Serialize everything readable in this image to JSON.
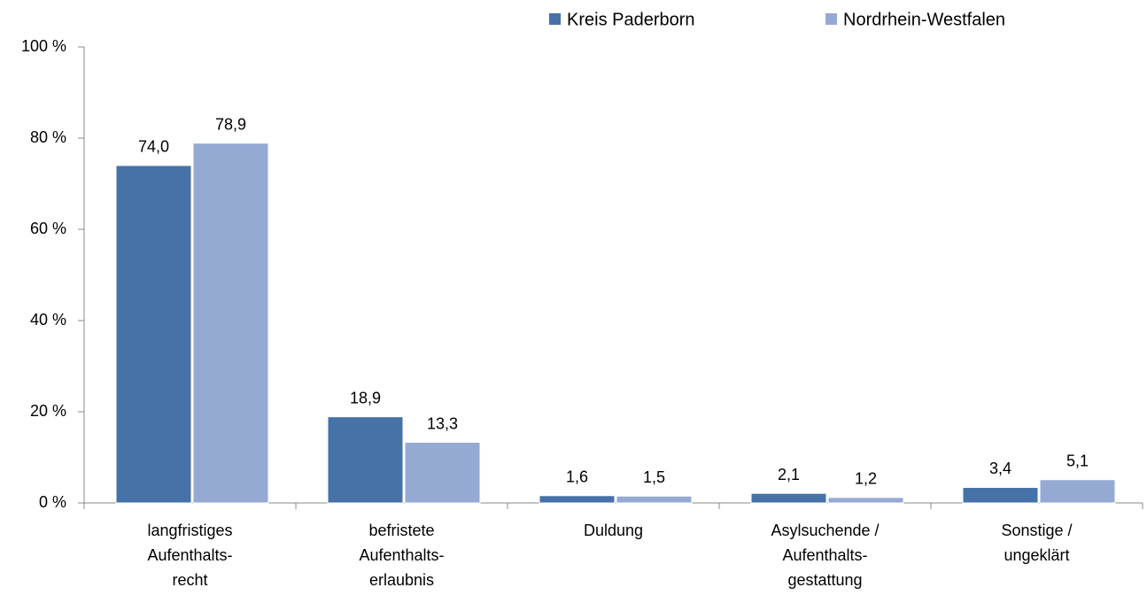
{
  "chart_data": {
    "type": "bar",
    "categories": [
      "langfristiges\nAufenthalts-\nrecht",
      "befristete\nAufenthalts-\nerlaubnis",
      "Duldung",
      "Asylsuchende /\nAufenthalts-\ngestattung",
      "Sonstige /\nungeklärt"
    ],
    "series": [
      {
        "name": "Kreis Paderborn",
        "color": "#4672a8",
        "values": [
          74.0,
          18.9,
          1.6,
          2.1,
          3.4
        ],
        "value_labels": [
          "74,0",
          "18,9",
          "1,6",
          "2,1",
          "3,4"
        ]
      },
      {
        "name": "Nordrhein-Westfalen",
        "color": "#95aad3",
        "values": [
          78.9,
          13.3,
          1.5,
          1.2,
          5.1
        ],
        "value_labels": [
          "78,9",
          "13,3",
          "1,5",
          "1,2",
          "5,1"
        ]
      }
    ],
    "ylim": [
      0,
      100
    ],
    "yticks": [
      {
        "value": 0,
        "label": "0 %"
      },
      {
        "value": 20,
        "label": "20 %"
      },
      {
        "value": 40,
        "label": "40 %"
      },
      {
        "value": 60,
        "label": "60 %"
      },
      {
        "value": 80,
        "label": "80 %"
      },
      {
        "value": 100,
        "label": "100 %"
      }
    ],
    "legend": "top"
  }
}
